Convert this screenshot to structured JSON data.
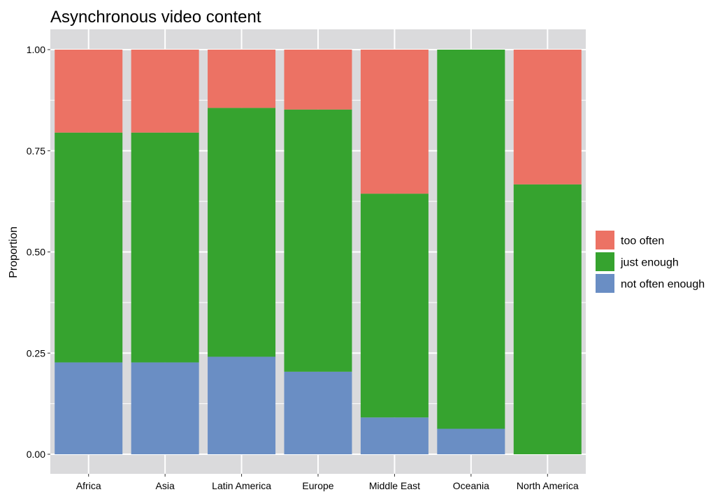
{
  "chart_data": {
    "type": "bar",
    "stacked": true,
    "title": "Asynchronous video content",
    "xlabel": "",
    "ylabel": "Proportion",
    "ylim": [
      0,
      1
    ],
    "yticks": [
      "0.00",
      "0.25",
      "0.50",
      "0.75",
      "1.00"
    ],
    "categories": [
      "Africa",
      "Asia",
      "Latin America",
      "Europe",
      "Middle East",
      "Oceania",
      "North America"
    ],
    "series": [
      {
        "name": "not often enough",
        "color": "#6A8EC4",
        "values": [
          0.227,
          0.227,
          0.241,
          0.204,
          0.091,
          0.063,
          0.0
        ]
      },
      {
        "name": "just enough",
        "color": "#36A32F",
        "values": [
          0.568,
          0.568,
          0.615,
          0.648,
          0.553,
          0.937,
          0.667
        ]
      },
      {
        "name": "too often",
        "color": "#EC7264",
        "values": [
          0.205,
          0.205,
          0.144,
          0.148,
          0.356,
          0.0,
          0.333
        ]
      }
    ],
    "legend": {
      "placement": "right",
      "entries": [
        "too often",
        "just enough",
        "not often enough"
      ]
    },
    "grid": true,
    "panel_background": "#DADADC",
    "gridline_color": "#FFFFFF"
  }
}
